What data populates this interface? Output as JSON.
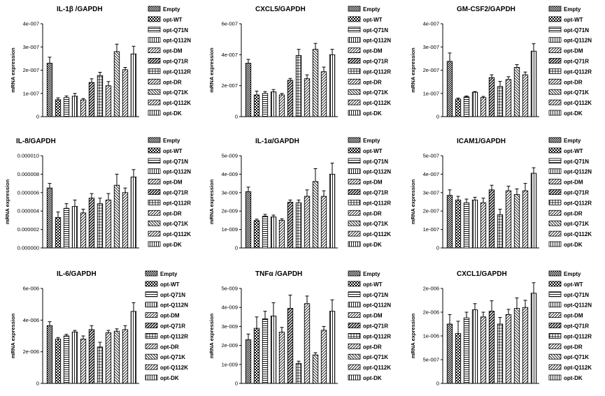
{
  "chart_data": [
    {
      "type": "bar",
      "title": "IL-1β /GAPDH",
      "ylabel": "mRNA expression",
      "ylim": [
        0,
        4e-07
      ],
      "yticks": [
        "0",
        "1e-007",
        "2e-007",
        "3e-007",
        "4e-007"
      ],
      "ytick_values": [
        0,
        1e-07,
        2e-07,
        3e-07,
        4e-07
      ],
      "categories": [
        "Empty",
        "opt-WT",
        "opt-Q71N",
        "opt-Q112N",
        "opt-DM",
        "opt-Q71R",
        "opt-Q112R",
        "opt-DR",
        "opt-Q71K",
        "opt-Q112K",
        "opt-DK"
      ],
      "values": [
        2.3e-07,
        7.3e-08,
        8.2e-08,
        8.8e-08,
        7.2e-08,
        1.47e-07,
        1.77e-07,
        1.33e-07,
        2.8e-07,
        2.02e-07,
        2.7e-07
      ],
      "errors": [
        2.6e-08,
        8e-09,
        7e-09,
        1.2e-08,
        6e-09,
        1.6e-08,
        1.4e-08,
        1.8e-08,
        3.2e-08,
        1e-08,
        3.3e-08
      ],
      "grid": false,
      "legend": "right"
    },
    {
      "type": "bar",
      "title": "CXCL5/GAPDH",
      "ylabel": "mRNA expression",
      "ylim": [
        0,
        6e-07
      ],
      "yticks": [
        "0",
        "2e-007",
        "4e-007",
        "6e-007"
      ],
      "ytick_values": [
        0,
        2e-07,
        4e-07,
        6e-07
      ],
      "categories": [
        "Empty",
        "opt-WT",
        "opt-Q71N",
        "opt-Q112N",
        "opt-DM",
        "opt-Q71R",
        "opt-Q112R",
        "opt-DR",
        "opt-Q71K",
        "opt-Q112K",
        "opt-DK"
      ],
      "values": [
        3.45e-07,
        1.4e-07,
        1.5e-07,
        1.6e-07,
        1.4e-07,
        2.35e-07,
        3.95e-07,
        2.45e-07,
        4.35e-07,
        2.9e-07,
        4e-07
      ],
      "errors": [
        2.5e-08,
        2.5e-08,
        1.2e-08,
        1.5e-08,
        1e-08,
        1.2e-08,
        4e-08,
        2.5e-08,
        3.8e-08,
        3e-08,
        3.5e-08
      ],
      "grid": false,
      "legend": "right"
    },
    {
      "type": "bar",
      "title": "GM-CSF2/GAPDH",
      "ylabel": "mRNA expression",
      "ylim": [
        0,
        4e-07
      ],
      "yticks": [
        "0",
        "1e-007",
        "2e-007",
        "3e-007",
        "4e-007"
      ],
      "ytick_values": [
        0,
        1e-07,
        2e-07,
        3e-07,
        4e-07
      ],
      "categories": [
        "Empty",
        "opt-WT",
        "opt-Q71N",
        "opt-Q112N",
        "opt-DM",
        "opt-Q71R",
        "opt-Q112R",
        "opt-DR",
        "opt-Q71K",
        "opt-Q112K",
        "opt-DK"
      ],
      "values": [
        2.38e-07,
        7.5e-08,
        8.5e-08,
        1.05e-07,
        8.2e-08,
        1.68e-07,
        1.3e-07,
        1.6e-07,
        2.12e-07,
        1.8e-07,
        2.82e-07
      ],
      "errors": [
        3.6e-08,
        5e-09,
        4e-09,
        3e-09,
        5e-09,
        1.2e-08,
        2.2e-08,
        1.2e-08,
        1.2e-08,
        1.2e-08,
        3.2e-08
      ],
      "grid": false,
      "legend": "right"
    },
    {
      "type": "bar",
      "title": "IL-8/GAPDH",
      "ylabel": "mRNA expression",
      "ylim": [
        0,
        1e-05
      ],
      "yticks": [
        "0.000000",
        "0.000002",
        "0.000004",
        "0.000006",
        "0.000008",
        "0.000010"
      ],
      "ytick_values": [
        0,
        2e-06,
        4e-06,
        6e-06,
        8e-06,
        1e-05
      ],
      "categories": [
        "Empty",
        "opt-WT",
        "opt-Q71N",
        "opt-Q112N",
        "opt-DM",
        "opt-Q71R",
        "opt-Q112R",
        "opt-DR",
        "opt-Q71K",
        "opt-Q112K",
        "opt-DK"
      ],
      "values": [
        6.5e-06,
        3.3e-06,
        4.3e-06,
        4.5e-06,
        3.8e-06,
        5.4e-06,
        4.8e-06,
        5.2e-06,
        6.8e-06,
        6e-06,
        7.7e-06
      ],
      "errors": [
        5e-07,
        6e-07,
        5e-07,
        7e-07,
        4e-07,
        5e-07,
        6e-07,
        7e-07,
        1.2e-06,
        5e-07,
        8e-07
      ],
      "grid": false,
      "legend": "right"
    },
    {
      "type": "bar",
      "title": "IL-1α/GAPDH",
      "ylabel": "mRNA expression",
      "ylim": [
        0,
        5e-09
      ],
      "yticks": [
        "0",
        "1e-009",
        "2e-009",
        "3e-009",
        "4e-009",
        "5e-009"
      ],
      "ytick_values": [
        0,
        1e-09,
        2e-09,
        3e-09,
        4e-09,
        5e-09
      ],
      "categories": [
        "Empty",
        "opt-WT",
        "opt-Q71N",
        "opt-Q112N",
        "opt-DM",
        "opt-Q71R",
        "opt-Q112R",
        "opt-DR",
        "opt-Q71K",
        "opt-Q112K",
        "opt-DK"
      ],
      "values": [
        3.05e-09,
        1.48e-09,
        1.72e-09,
        1.68e-09,
        1.5e-09,
        2.48e-09,
        2.45e-09,
        2.8e-09,
        3.6e-09,
        2.8e-09,
        4e-09
      ],
      "errors": [
        2.5e-10,
        8e-11,
        1e-10,
        1e-10,
        8e-11,
        1.2e-10,
        1.5e-10,
        3.5e-10,
        7e-10,
        3e-10,
        6e-10
      ],
      "grid": false,
      "legend": "right"
    },
    {
      "type": "bar",
      "title": "ICAM1/GAPDH",
      "ylabel": "mRNA expression",
      "ylim": [
        0,
        5e-07
      ],
      "yticks": [
        "0",
        "1e-007",
        "2e-007",
        "3e-007",
        "4e-007",
        "5e-007"
      ],
      "ytick_values": [
        0,
        1e-07,
        2e-07,
        3e-07,
        4e-07,
        5e-07
      ],
      "categories": [
        "Empty",
        "opt-WT",
        "opt-Q71N",
        "opt-Q112N",
        "opt-DM",
        "opt-Q71R",
        "opt-Q112R",
        "opt-DR",
        "opt-Q71K",
        "opt-Q112K",
        "opt-DK"
      ],
      "values": [
        2.85e-07,
        2.6e-07,
        2.45e-07,
        2.6e-07,
        2.45e-07,
        3.15e-07,
        1.8e-07,
        3.1e-07,
        2.9e-07,
        3.1e-07,
        4.05e-07
      ],
      "errors": [
        3e-08,
        2e-08,
        2e-08,
        1.5e-08,
        2.5e-08,
        2.5e-08,
        3e-08,
        2.5e-08,
        3e-08,
        4e-08,
        3e-08
      ],
      "grid": false,
      "legend": "right"
    },
    {
      "type": "bar",
      "title": "IL-6/GAPDH",
      "ylabel": "mRNA expression",
      "ylim": [
        0,
        6e-06
      ],
      "yticks": [
        "0",
        "2e-006",
        "4e-006",
        "6e-006"
      ],
      "ytick_values": [
        0,
        2e-06,
        4e-06,
        6e-06
      ],
      "categories": [
        "Empty",
        "opt-WT",
        "opt-Q71N",
        "opt-Q112N",
        "opt-DM",
        "opt-Q71R",
        "opt-Q112R",
        "opt-DR",
        "opt-Q71K",
        "opt-Q112K",
        "opt-DK"
      ],
      "values": [
        3.65e-06,
        2.8e-06,
        3e-06,
        3.25e-06,
        2.8e-06,
        3.4e-06,
        2.3e-06,
        3.2e-06,
        3.3e-06,
        3.4e-06,
        4.55e-06
      ],
      "errors": [
        2.5e-07,
        1e-07,
        1e-07,
        1e-07,
        2e-07,
        2.5e-07,
        3e-07,
        1.5e-07,
        1.5e-07,
        2.5e-07,
        5.5e-07
      ],
      "grid": false,
      "legend": "right"
    },
    {
      "type": "bar",
      "title": "TNFα /GAPDH",
      "ylabel": "mRNA expression",
      "ylim": [
        0,
        5e-09
      ],
      "yticks": [
        "0",
        "1e-009",
        "2e-009",
        "3e-009",
        "4e-009",
        "5e-009"
      ],
      "ytick_values": [
        0,
        1e-09,
        2e-09,
        3e-09,
        4e-09,
        5e-09
      ],
      "categories": [
        "Empty",
        "opt-WT",
        "opt-Q71N",
        "opt-Q112N",
        "opt-DM",
        "opt-Q71R",
        "opt-Q112R",
        "opt-DR",
        "opt-Q71K",
        "opt-Q112K",
        "opt-DK"
      ],
      "values": [
        2.3e-09,
        2.9e-09,
        3.4e-09,
        3.55e-09,
        2.7e-09,
        3.95e-09,
        1.05e-09,
        4.2e-09,
        1.5e-09,
        2.8e-09,
        3.8e-09
      ],
      "errors": [
        3e-10,
        6e-10,
        4e-10,
        7e-10,
        2.5e-10,
        7e-10,
        1.2e-10,
        4e-10,
        1.2e-10,
        2e-10,
        6e-10
      ],
      "grid": false,
      "legend": "right"
    },
    {
      "type": "bar",
      "title": "CXCL1/GAPDH",
      "ylabel": "mRNA expression",
      "ylim": [
        0,
        2e-06
      ],
      "yticks": [
        "0",
        "5e-007",
        "1e-006",
        "2e-006",
        "2e-006"
      ],
      "ytick_values": [
        0,
        5e-07,
        1e-06,
        1.5e-06,
        2e-06
      ],
      "categories": [
        "Empty",
        "opt-WT",
        "opt-Q71N",
        "opt-Q112N",
        "opt-DM",
        "opt-Q71R",
        "opt-Q112R",
        "opt-DR",
        "opt-Q71K",
        "opt-Q112K",
        "opt-DK"
      ],
      "values": [
        1.25e-06,
        1.05e-06,
        1.38e-06,
        1.55e-06,
        1.4e-06,
        1.52e-06,
        1.25e-06,
        1.45e-06,
        1.58e-06,
        1.6e-06,
        1.9e-06
      ],
      "errors": [
        2e-07,
        2.6e-07,
        1.2e-07,
        1.3e-07,
        1e-07,
        2.2e-07,
        1.4e-07,
        1.1e-07,
        2.2e-07,
        1.5e-07,
        2.2e-07
      ],
      "grid": false,
      "legend": "right"
    }
  ],
  "legend_patterns": {
    "Empty": "dense-checker",
    "opt-WT": "checker",
    "opt-Q71N": "horizontal-lines",
    "opt-Q112N": "vertical-lines",
    "opt-DM": "diagonal-lines",
    "opt-Q71R": "diagonal-lines-bold",
    "opt-Q112R": "grid",
    "opt-DR": "diagonal-lines",
    "opt-Q71K": "back-diagonal-lines",
    "opt-Q112K": "diagonal-lines",
    "opt-DK": "vertical-lines"
  }
}
